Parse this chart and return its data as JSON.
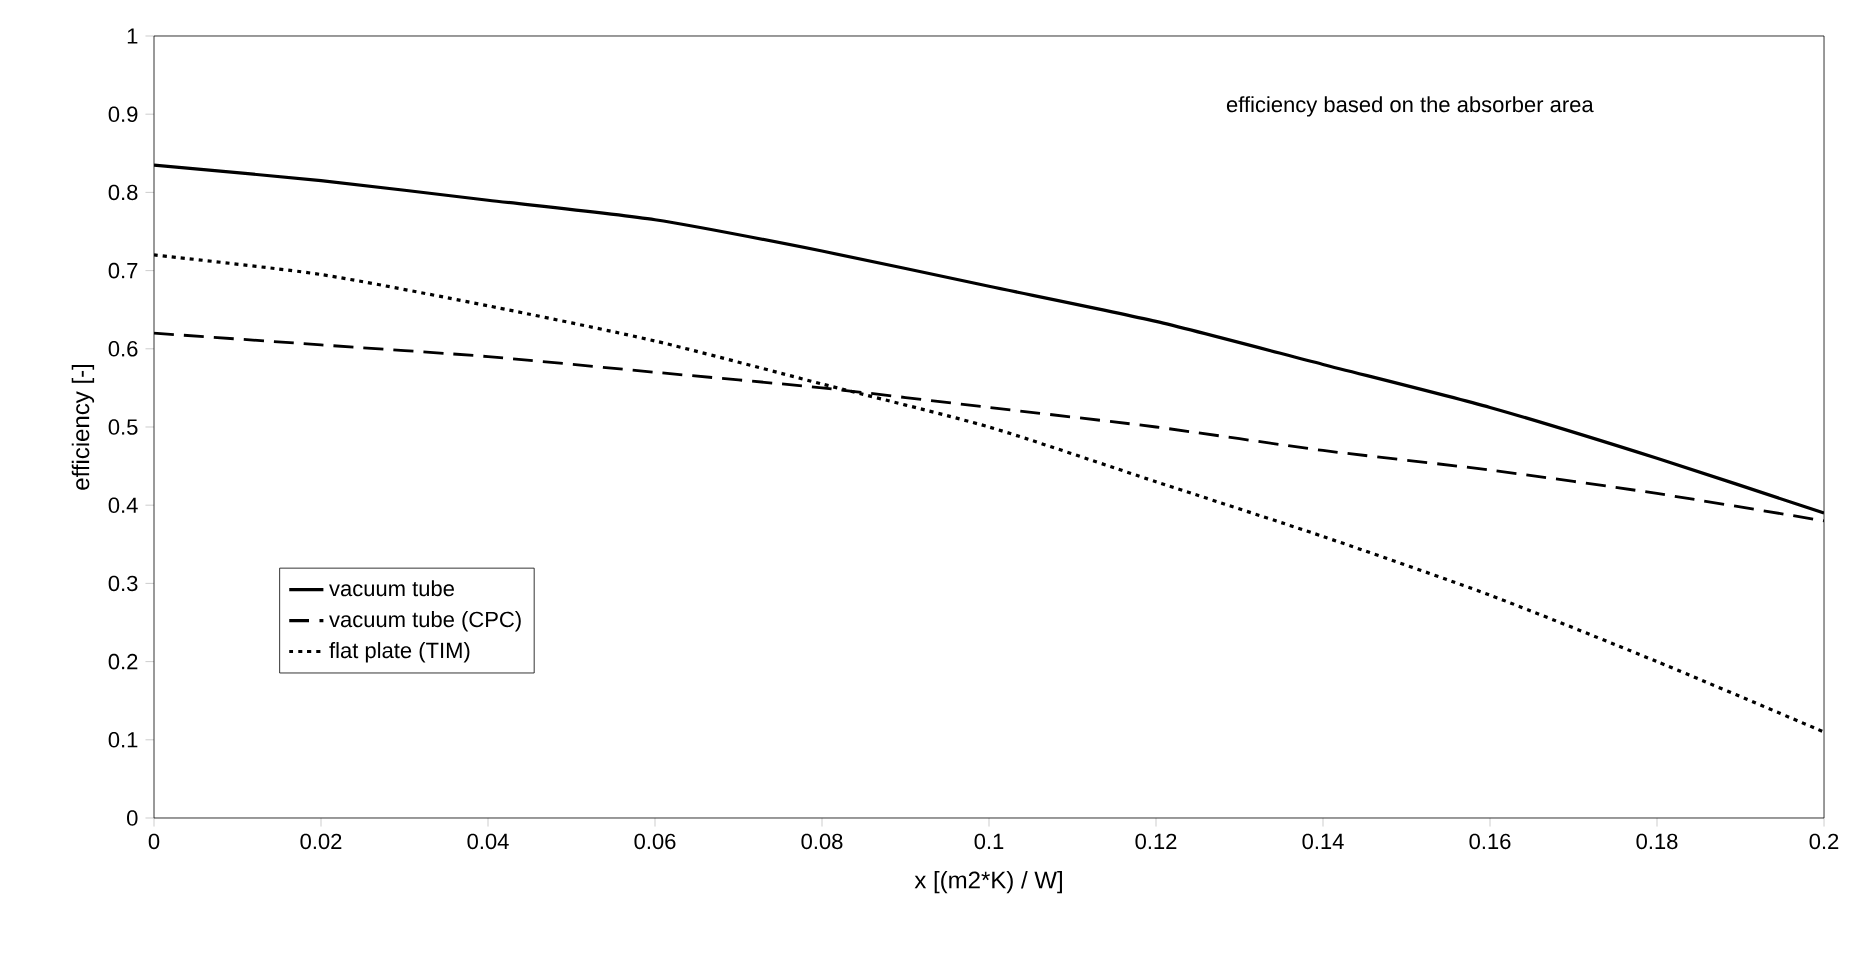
{
  "chart_data": {
    "type": "line",
    "xlabel": "x  [(m2*K) / W]",
    "ylabel": "efficiency [-]",
    "annotations": [
      "efficiency based on the absorber area"
    ],
    "x": [
      0,
      0.02,
      0.04,
      0.06,
      0.08,
      0.1,
      0.12,
      0.14,
      0.16,
      0.18,
      0.2
    ],
    "series": [
      {
        "name": "vacuum tube",
        "color": "#000000",
        "line_style": "solid",
        "values": [
          0.835,
          0.815,
          0.79,
          0.765,
          0.725,
          0.68,
          0.635,
          0.58,
          0.525,
          0.46,
          0.39
        ]
      },
      {
        "name": "vacuum tube (CPC)",
        "color": "#000000",
        "line_style": "dashed",
        "values": [
          0.62,
          0.605,
          0.59,
          0.57,
          0.55,
          0.525,
          0.5,
          0.47,
          0.445,
          0.415,
          0.38
        ]
      },
      {
        "name": "flat plate (TIM)",
        "color": "#000000",
        "line_style": "dotted",
        "values": [
          0.72,
          0.695,
          0.655,
          0.61,
          0.555,
          0.5,
          0.43,
          0.36,
          0.285,
          0.2,
          0.11
        ]
      }
    ],
    "xlim": [
      0,
      0.2
    ],
    "ylim": [
      0,
      1
    ],
    "xticks": [
      0,
      0.02,
      0.04,
      0.06,
      0.08,
      0.1,
      0.12,
      0.14,
      0.16,
      0.18,
      0.2
    ],
    "yticks": [
      0,
      0.1,
      0.2,
      0.3,
      0.4,
      0.5,
      0.6,
      0.7,
      0.8,
      0.9,
      1
    ],
    "grid": false,
    "legend": "bottom left",
    "marker": "none"
  }
}
